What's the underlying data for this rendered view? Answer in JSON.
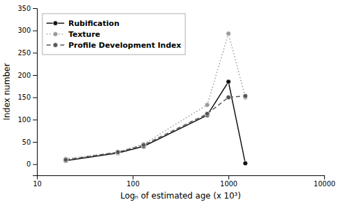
{
  "chart_data": {
    "type": "line",
    "x": [
      20,
      70,
      130,
      600,
      1000,
      1500
    ],
    "series": [
      {
        "name": "Rubification",
        "color": "#111111",
        "line_style": "solid",
        "marker": "circle",
        "values": [
          8,
          25,
          40,
          110,
          185,
          2
        ]
      },
      {
        "name": "Texture",
        "color": "#999999",
        "line_style": "dotted",
        "marker": "circle",
        "values": [
          12,
          27,
          45,
          133,
          293,
          150
        ]
      },
      {
        "name": "Profile Development Index",
        "color": "#555555",
        "line_style": "dashed",
        "marker": "circle",
        "values": [
          10,
          27,
          43,
          113,
          150,
          153
        ]
      }
    ],
    "xlabel": "Logₙ of estimated age (x 10³)",
    "ylabel": "Index number",
    "log": "x",
    "xlim": [
      10,
      10000
    ],
    "xticks": [
      10,
      100,
      1000,
      10000
    ],
    "ylim": [
      -25,
      350
    ],
    "yticks": [
      0,
      50,
      100,
      150,
      200,
      250,
      300,
      350
    ],
    "grid": false,
    "legend": "upper left"
  }
}
